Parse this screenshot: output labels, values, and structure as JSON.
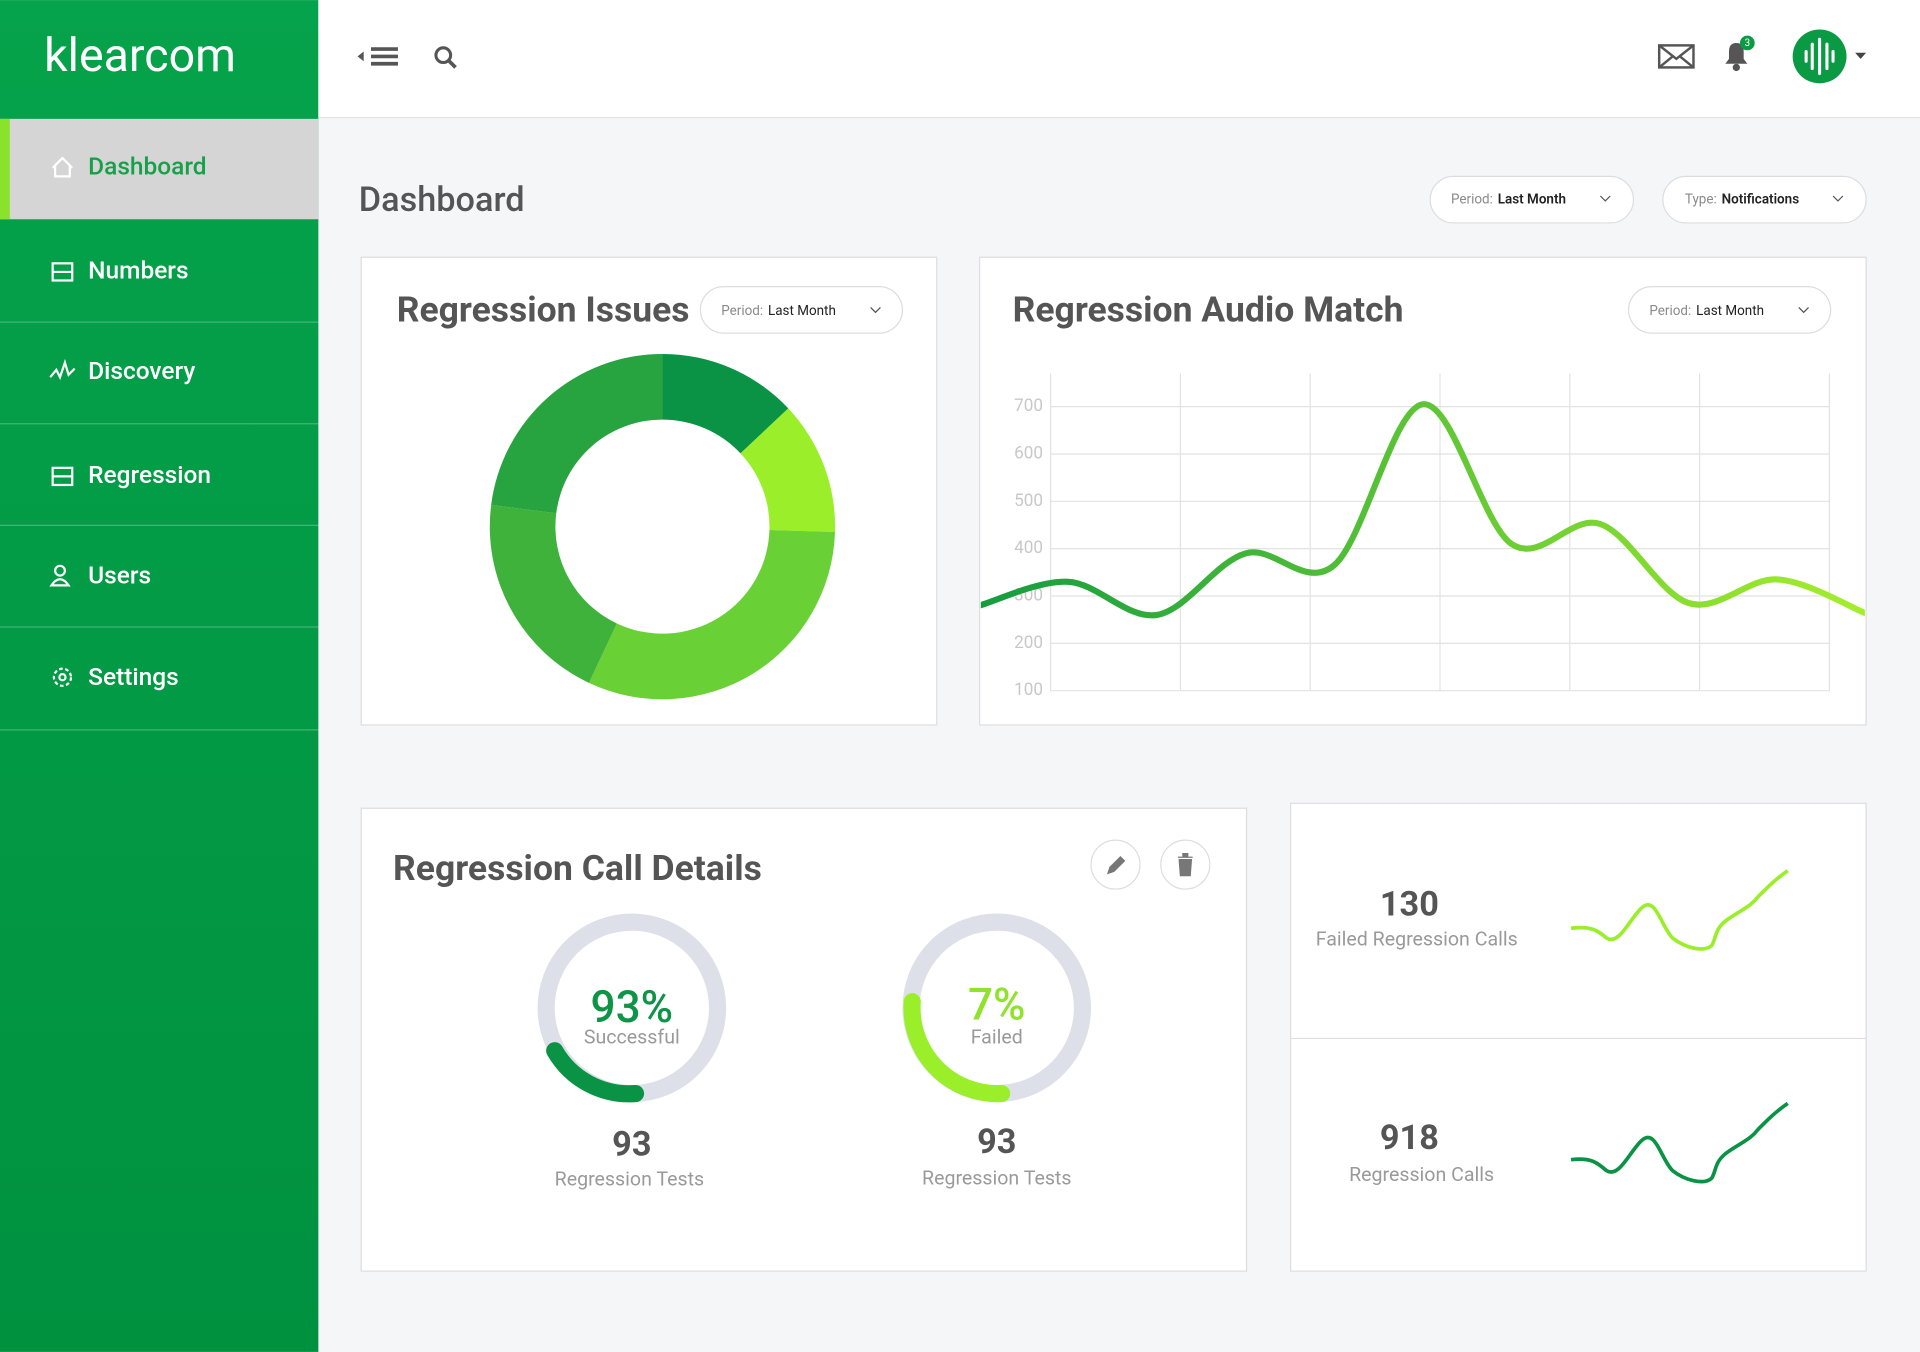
{
  "logo": "klearcom",
  "nav": [
    "Dashboard",
    "Numbers",
    "Discovery",
    "Regression",
    "Users",
    "Settings"
  ],
  "notification_count": "3",
  "page_title": "Dashboard",
  "filters": [
    {
      "label": "Period:",
      "value": "Last Month"
    },
    {
      "label": "Type:",
      "value": "Notifications"
    }
  ],
  "card_filters": [
    {
      "label": "Period:",
      "value": "Last Month"
    },
    {
      "label": "Period:",
      "value": "Last Month"
    }
  ],
  "chart_data": [
    {
      "type": "pie",
      "title": "Regression Issues",
      "values": [
        13,
        12.5,
        31.5,
        20,
        23
      ],
      "colors": [
        "#0a9245",
        "#9bef2a",
        "#69d135",
        "#3fb23b",
        "#27a33f"
      ],
      "hole": 0.62
    },
    {
      "type": "line",
      "title": "Regression Audio Match",
      "categories": [
        null,
        null,
        null,
        null,
        null,
        null,
        null,
        null,
        null,
        null,
        null
      ],
      "values": [
        280,
        330,
        260,
        390,
        365,
        705,
        410,
        452,
        285,
        335,
        263
      ],
      "color": "#3cb83a",
      "gradient": [
        "#159c3f",
        "#a6ee2c"
      ],
      "ylim": [
        100,
        700
      ],
      "yticks": [
        100,
        200,
        300,
        400,
        500,
        600,
        700
      ],
      "grid": true
    }
  ],
  "call_details": {
    "title": "Regression Call Details",
    "stats": [
      {
        "percent": "93%",
        "status": "Successful",
        "count": "93",
        "caption": "Regression Tests"
      },
      {
        "percent": "7%",
        "status": "Failed",
        "count": "93",
        "caption": "Regression Tests"
      }
    ]
  },
  "summary": [
    {
      "count": "130",
      "caption": "Failed Regression Calls"
    },
    {
      "count": "918",
      "caption": "Regression Calls"
    }
  ]
}
